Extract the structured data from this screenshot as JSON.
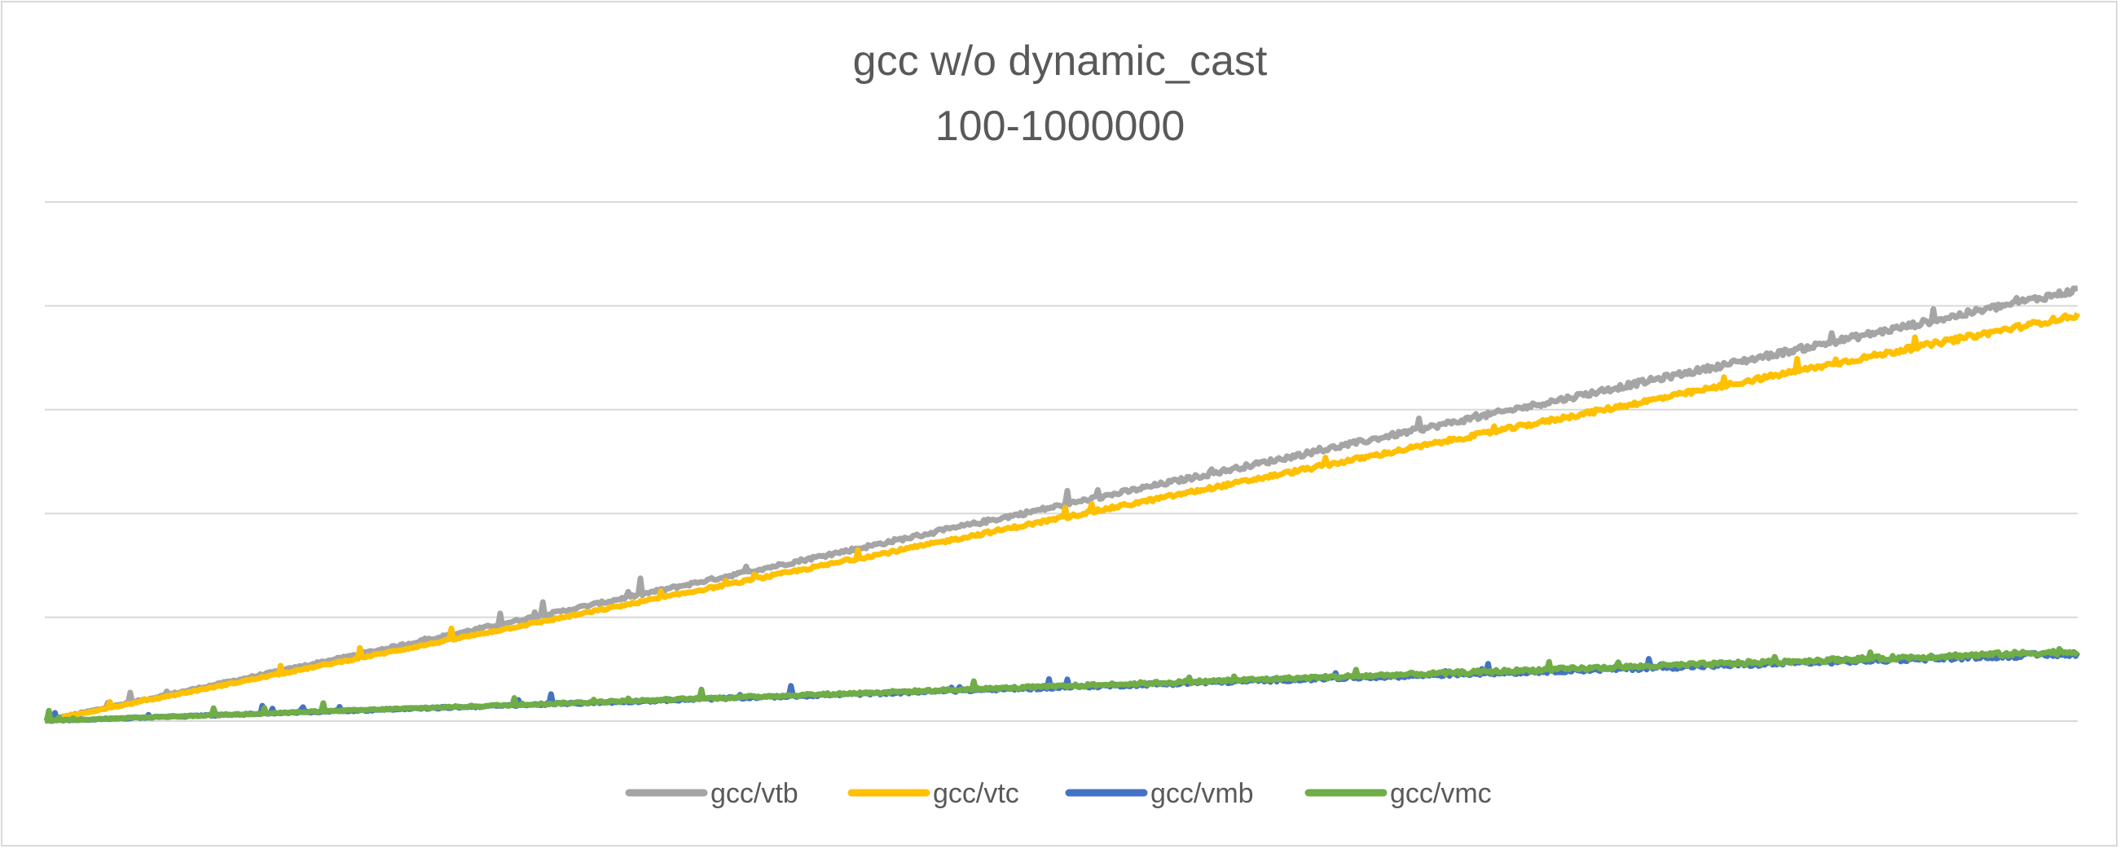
{
  "chart_data": {
    "type": "line",
    "title": "gcc w/o dynamic_cast",
    "subtitle": "100-1000000",
    "xlabel": "",
    "ylabel": "",
    "ylim": [
      0,
      5
    ],
    "xlim": [
      0,
      1000
    ],
    "grid": true,
    "legend_position": "bottom",
    "series": [
      {
        "name": "gcc/vtb",
        "color": "#A5A5A5",
        "start": 0,
        "end": 4.14,
        "noise": 0.05
      },
      {
        "name": "gcc/vtc",
        "color": "#FFC000",
        "start": 0,
        "end": 3.9,
        "noise": 0.04
      },
      {
        "name": "gcc/vmb",
        "color": "#4472C4",
        "start": 0,
        "end": 0.64,
        "noise": 0.035
      },
      {
        "name": "gcc/vmc",
        "color": "#70AD47",
        "start": 0,
        "end": 0.66,
        "noise": 0.035
      }
    ]
  }
}
